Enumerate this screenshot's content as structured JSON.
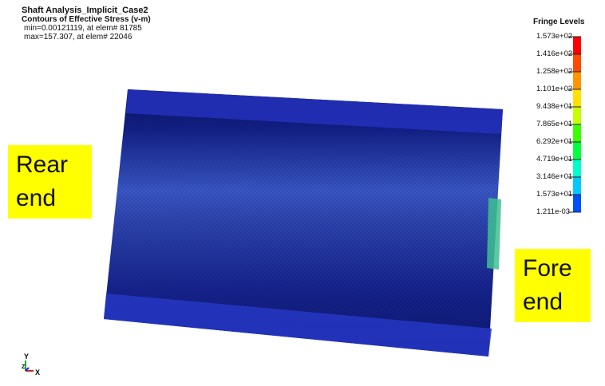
{
  "header": {
    "title": "Shaft Analysis_Implicit_Case2",
    "subtitle": "Contours of Effective Stress (v-m)",
    "min_line": "min=0.00121119, at elem# 81785",
    "max_line": "max=157.307, at elem# 22046"
  },
  "legend": {
    "title": "Fringe Levels",
    "levels": [
      "1.573e+02",
      "1.416e+02",
      "1.258e+02",
      "1.101e+02",
      "9.438e+01",
      "7.865e+01",
      "6.292e+01",
      "4.719e+01",
      "3.146e+01",
      "1.573e+01",
      "1.211e-03"
    ],
    "colors": [
      "#ff0000",
      "#ff4a00",
      "#ff9600",
      "#ffe000",
      "#c8ff00",
      "#3cff00",
      "#00ff3c",
      "#00ffc8",
      "#00c8ff",
      "#0050ff"
    ]
  },
  "annotations": {
    "rear": [
      "Rear",
      "end"
    ],
    "fore": [
      "Fore",
      "end"
    ]
  },
  "triad": {
    "y": "Y",
    "z": "Z",
    "x": "X"
  }
}
